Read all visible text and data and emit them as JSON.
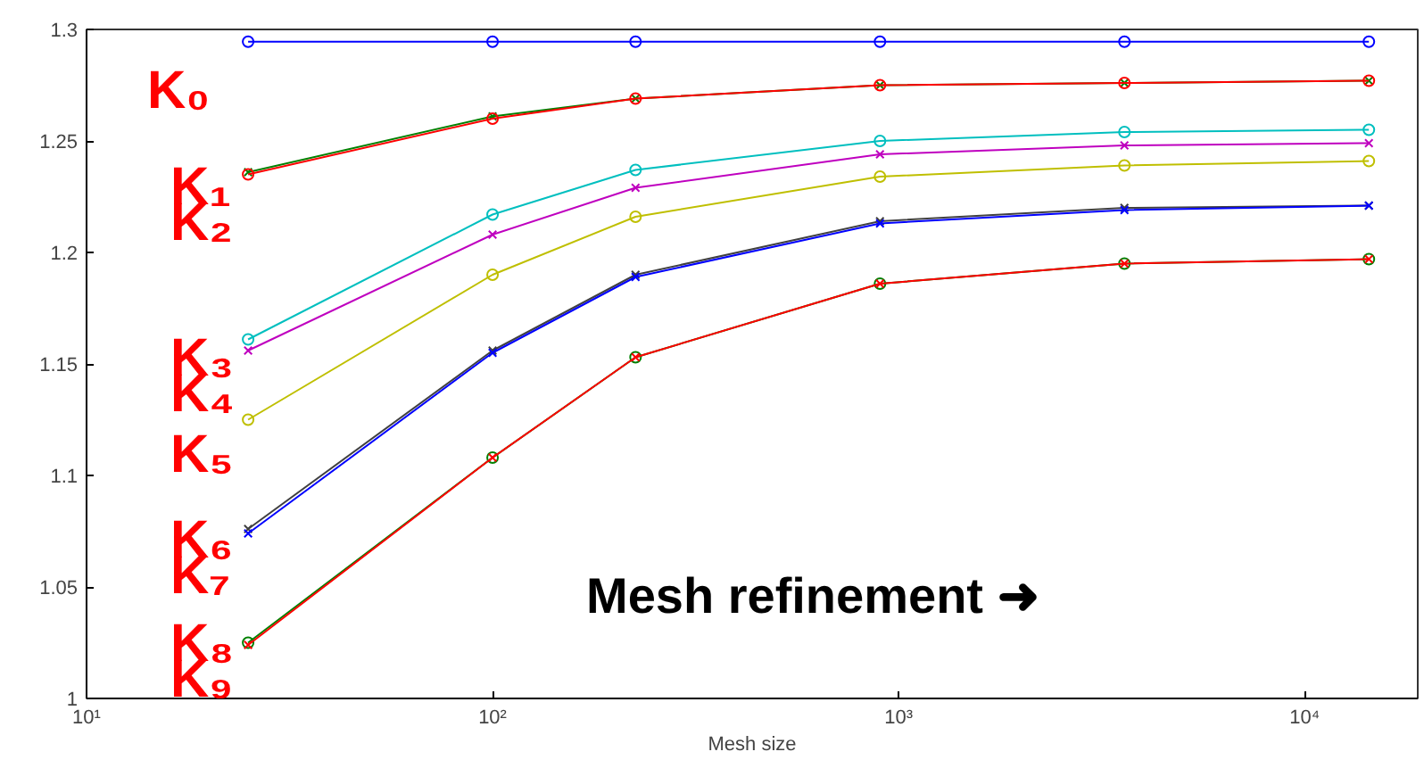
{
  "chart_data": {
    "type": "line",
    "xlabel": "Mesh size",
    "x": [
      25,
      100,
      225,
      900,
      3600,
      14400
    ],
    "log": "x",
    "xlim": [
      10,
      19000
    ],
    "xticks": [
      {
        "value": 10,
        "label": "10¹"
      },
      {
        "value": 100,
        "label": "10²"
      },
      {
        "value": 1000,
        "label": "10³"
      },
      {
        "value": 10000,
        "label": "10⁴"
      }
    ],
    "ylim": [
      1,
      1.3
    ],
    "yticks": [
      1,
      1.05,
      1.1,
      1.15,
      1.2,
      1.25,
      1.3
    ],
    "grid": false,
    "line_style": "solid",
    "series": [
      {
        "color": "#0000ff",
        "marker": "circle",
        "values": [
          1.2945,
          1.2945,
          1.2945,
          1.2945,
          1.2945,
          1.2945
        ]
      },
      {
        "color": "#008000",
        "marker": "cross",
        "values": [
          1.236,
          1.261,
          1.269,
          1.275,
          1.276,
          1.277
        ]
      },
      {
        "color": "#ff0000",
        "marker": "circle",
        "values": [
          1.235,
          1.26,
          1.269,
          1.275,
          1.276,
          1.277
        ]
      },
      {
        "color": "#00bfbf",
        "marker": "circle",
        "values": [
          1.161,
          1.217,
          1.237,
          1.25,
          1.254,
          1.255
        ]
      },
      {
        "color": "#bf00bf",
        "marker": "cross",
        "values": [
          1.156,
          1.208,
          1.229,
          1.244,
          1.248,
          1.249
        ]
      },
      {
        "color": "#bfbf00",
        "marker": "circle",
        "values": [
          1.125,
          1.19,
          1.216,
          1.234,
          1.239,
          1.241
        ]
      },
      {
        "color": "#404040",
        "marker": "cross",
        "values": [
          1.076,
          1.156,
          1.19,
          1.214,
          1.22,
          1.221
        ]
      },
      {
        "color": "#0000ff",
        "marker": "cross",
        "values": [
          1.074,
          1.155,
          1.189,
          1.213,
          1.219,
          1.221
        ]
      },
      {
        "color": "#008000",
        "marker": "circle",
        "values": [
          1.025,
          1.108,
          1.153,
          1.186,
          1.195,
          1.197
        ]
      },
      {
        "color": "#ff0000",
        "marker": "cross",
        "values": [
          1.024,
          1.108,
          1.153,
          1.186,
          1.195,
          1.197
        ]
      }
    ],
    "annotations": [
      "K₀",
      "K₁",
      "K₂",
      "K₃",
      "K₄",
      "K₅",
      "K₆",
      "K₇",
      "K₈",
      "K₉",
      "Mesh refinement ➜"
    ]
  }
}
